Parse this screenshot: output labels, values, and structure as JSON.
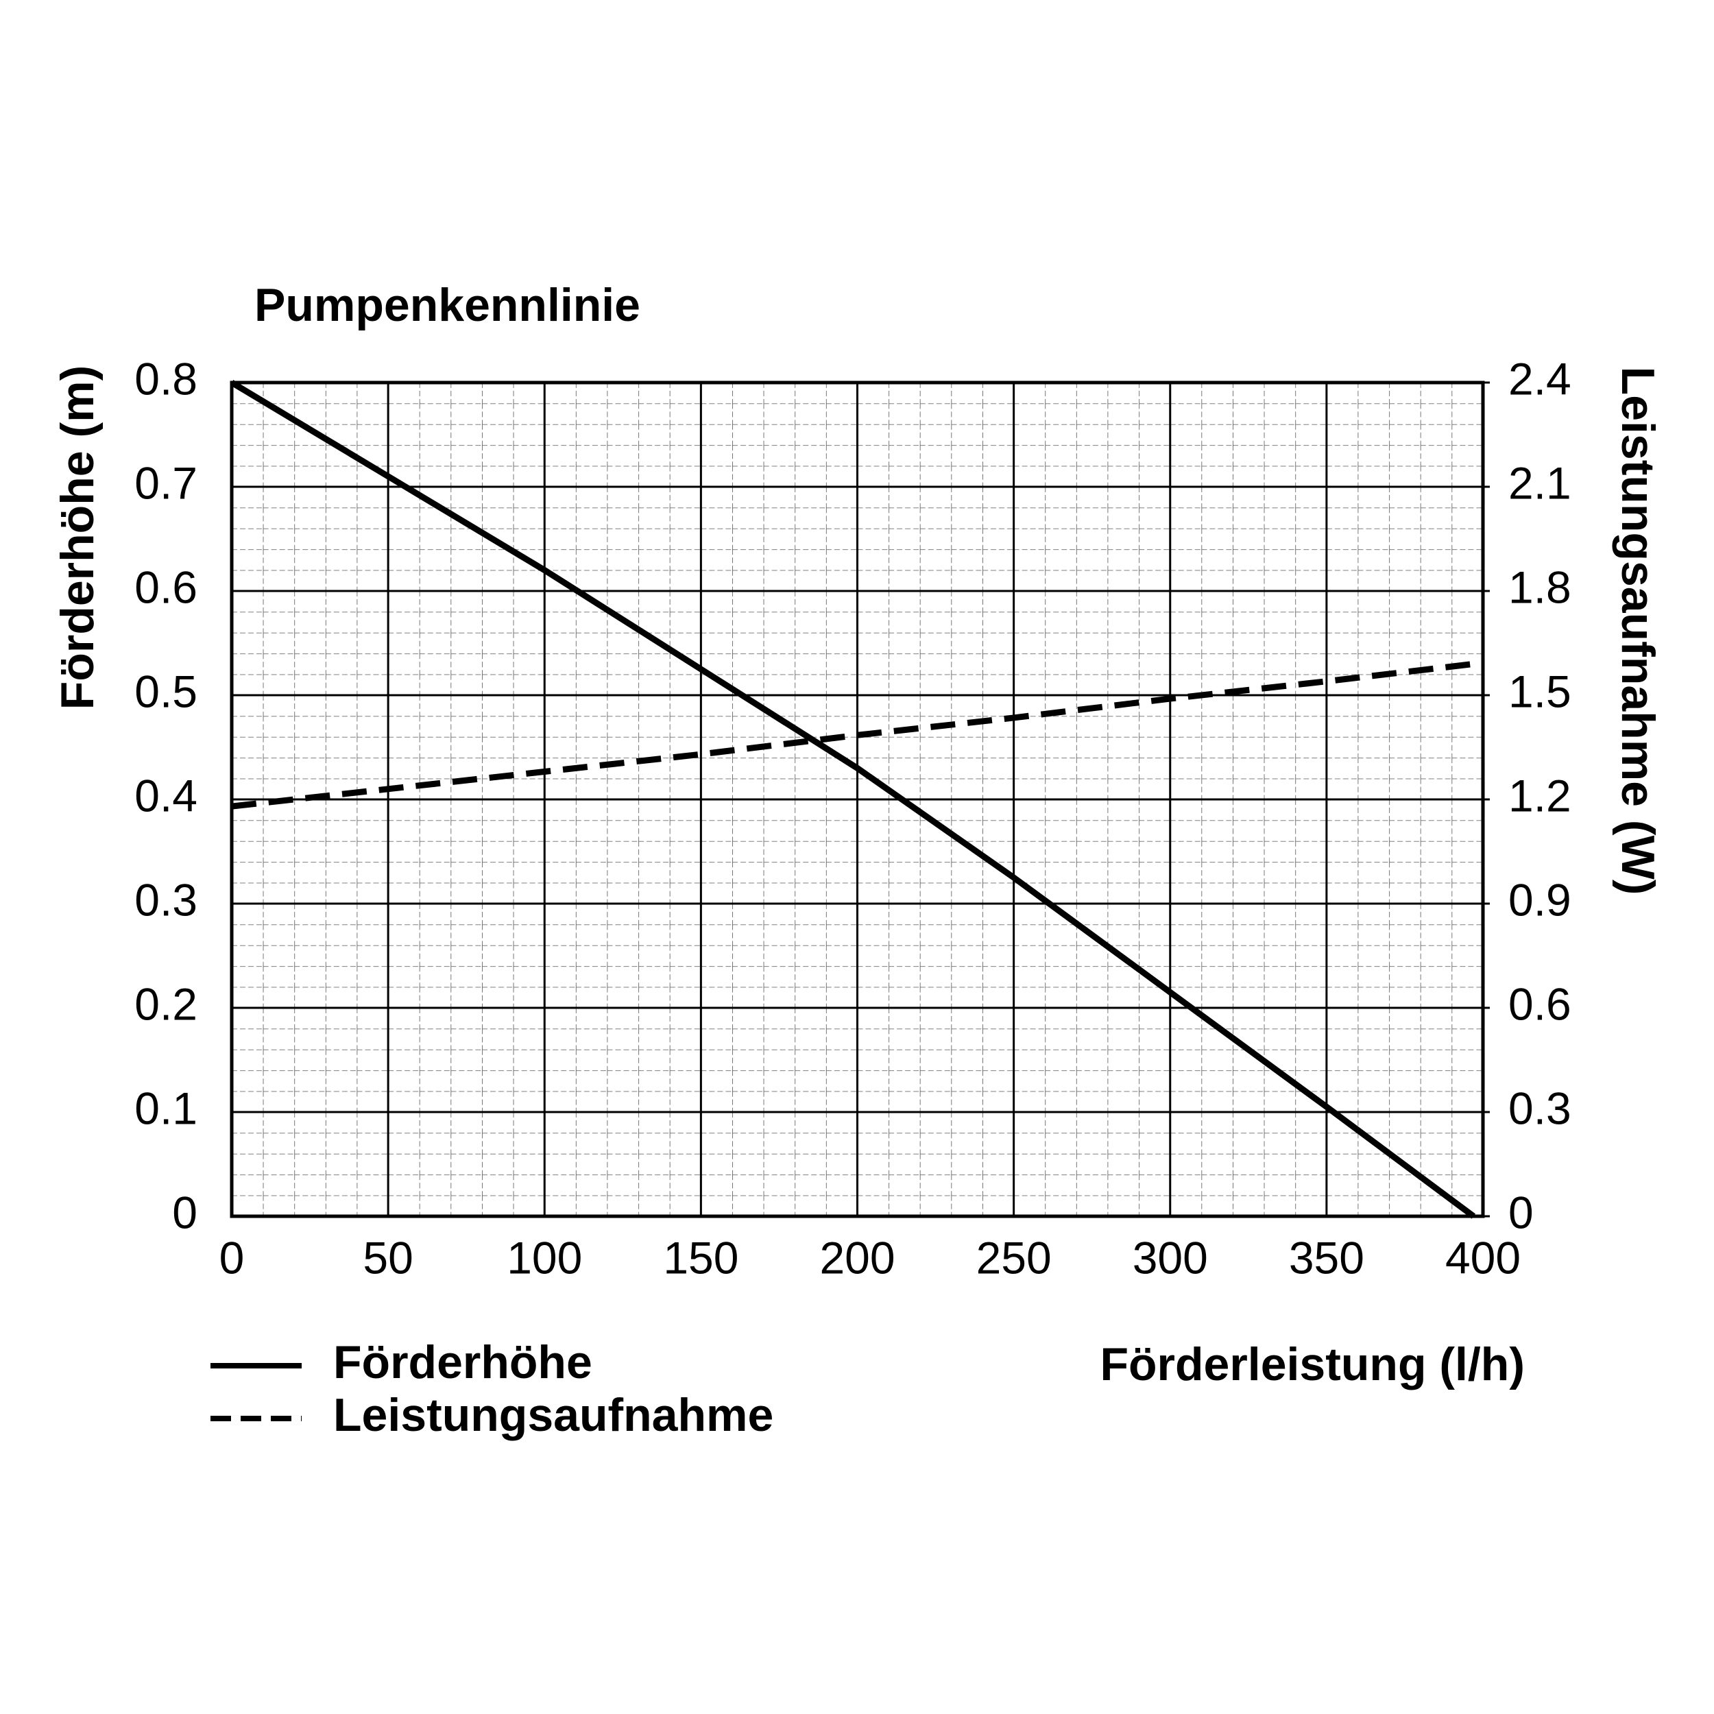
{
  "chart_data": {
    "type": "line",
    "title": "Pumpenkennlinie",
    "x_label": "Förderleistung (l/h)",
    "y_label": "Förderhöhe (m)",
    "y2_label": "Leistungsaufnahme (W)",
    "x": [
      0,
      50,
      100,
      150,
      200,
      250,
      300,
      350,
      397
    ],
    "series": [
      {
        "name": "Förderhöhe",
        "color": "#000000",
        "line_style": "solid",
        "values": [
          0.8,
          0.71,
          0.62,
          0.525,
          0.43,
          0.325,
          0.215,
          0.105,
          0
        ]
      },
      {
        "name": "Leistungsaufnahme",
        "color": "#000000",
        "line_style": "dashed",
        "axis": "y2",
        "values": [
          1.18,
          1.23,
          1.28,
          1.33,
          1.385,
          1.435,
          1.49,
          1.54,
          1.59
        ]
      }
    ],
    "xlim": [
      0,
      400
    ],
    "xticks": [
      0,
      50,
      100,
      150,
      200,
      250,
      300,
      350,
      400
    ],
    "ylim": [
      0,
      0.8
    ],
    "yticks": [
      0,
      0.1,
      0.2,
      0.3,
      0.4,
      0.5,
      0.6,
      0.7,
      0.8
    ],
    "y2lim": [
      0,
      2.4
    ],
    "y2ticks": [
      0,
      0.3,
      0.6,
      0.9,
      1.2,
      1.5,
      1.8,
      2.1,
      2.4
    ],
    "grid": true,
    "legend": "bottom-left"
  }
}
